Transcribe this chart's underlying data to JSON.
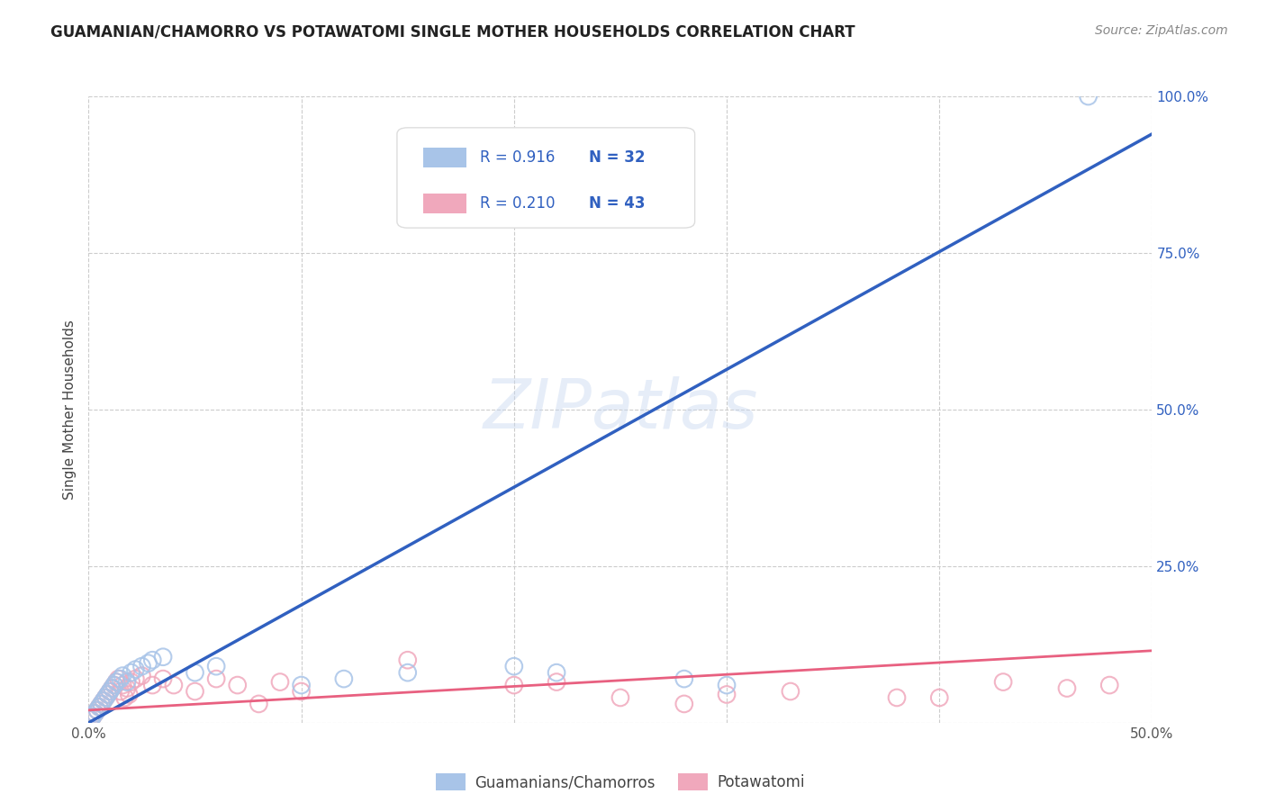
{
  "title": "GUAMANIAN/CHAMORRO VS POTAWATOMI SINGLE MOTHER HOUSEHOLDS CORRELATION CHART",
  "source": "Source: ZipAtlas.com",
  "ylabel": "Single Mother Households",
  "xlim": [
    0,
    0.5
  ],
  "ylim": [
    0,
    1.0
  ],
  "xticks": [
    0.0,
    0.1,
    0.2,
    0.3,
    0.4,
    0.5
  ],
  "xticklabels": [
    "0.0%",
    "",
    "",
    "",
    "",
    "50.0%"
  ],
  "yticks": [
    0.0,
    0.25,
    0.5,
    0.75,
    1.0
  ],
  "yticklabels": [
    "",
    "25.0%",
    "50.0%",
    "75.0%",
    "100.0%"
  ],
  "blue_trend_x": [
    0.0,
    0.5
  ],
  "blue_trend_y": [
    0.0,
    0.94
  ],
  "pink_trend_x": [
    0.0,
    0.5
  ],
  "pink_trend_y": [
    0.02,
    0.115
  ],
  "blue_color": "#3060c0",
  "pink_color": "#e86080",
  "blue_scatter_color": "#a8c4e8",
  "pink_scatter_color": "#f0a8bc",
  "watermark": "ZIPatlas",
  "background_color": "#ffffff",
  "grid_color": "#cccccc",
  "legend_R1": "0.916",
  "legend_N1": "32",
  "legend_R2": "0.210",
  "legend_N2": "43",
  "blue_scatter_x": [
    0.001,
    0.002,
    0.003,
    0.004,
    0.005,
    0.006,
    0.007,
    0.008,
    0.009,
    0.01,
    0.011,
    0.012,
    0.013,
    0.015,
    0.016,
    0.018,
    0.02,
    0.022,
    0.025,
    0.028,
    0.03,
    0.035,
    0.05,
    0.06,
    0.1,
    0.12,
    0.15,
    0.2,
    0.22,
    0.28,
    0.3,
    0.47
  ],
  "blue_scatter_y": [
    0.005,
    0.01,
    0.015,
    0.02,
    0.025,
    0.03,
    0.035,
    0.04,
    0.045,
    0.05,
    0.055,
    0.06,
    0.065,
    0.07,
    0.075,
    0.065,
    0.08,
    0.085,
    0.09,
    0.095,
    0.1,
    0.105,
    0.08,
    0.09,
    0.06,
    0.07,
    0.08,
    0.09,
    0.08,
    0.07,
    0.06,
    1.0
  ],
  "pink_scatter_x": [
    0.001,
    0.002,
    0.003,
    0.004,
    0.005,
    0.006,
    0.007,
    0.008,
    0.009,
    0.01,
    0.011,
    0.012,
    0.013,
    0.014,
    0.015,
    0.016,
    0.017,
    0.018,
    0.019,
    0.02,
    0.022,
    0.025,
    0.03,
    0.035,
    0.04,
    0.05,
    0.06,
    0.07,
    0.08,
    0.09,
    0.1,
    0.15,
    0.2,
    0.22,
    0.25,
    0.28,
    0.3,
    0.33,
    0.38,
    0.4,
    0.43,
    0.46,
    0.48
  ],
  "pink_scatter_y": [
    0.005,
    0.01,
    0.015,
    0.02,
    0.025,
    0.03,
    0.035,
    0.04,
    0.045,
    0.05,
    0.055,
    0.06,
    0.065,
    0.07,
    0.05,
    0.06,
    0.04,
    0.055,
    0.045,
    0.065,
    0.07,
    0.075,
    0.06,
    0.07,
    0.06,
    0.05,
    0.07,
    0.06,
    0.03,
    0.065,
    0.05,
    0.1,
    0.06,
    0.065,
    0.04,
    0.03,
    0.045,
    0.05,
    0.04,
    0.04,
    0.065,
    0.055,
    0.06
  ]
}
